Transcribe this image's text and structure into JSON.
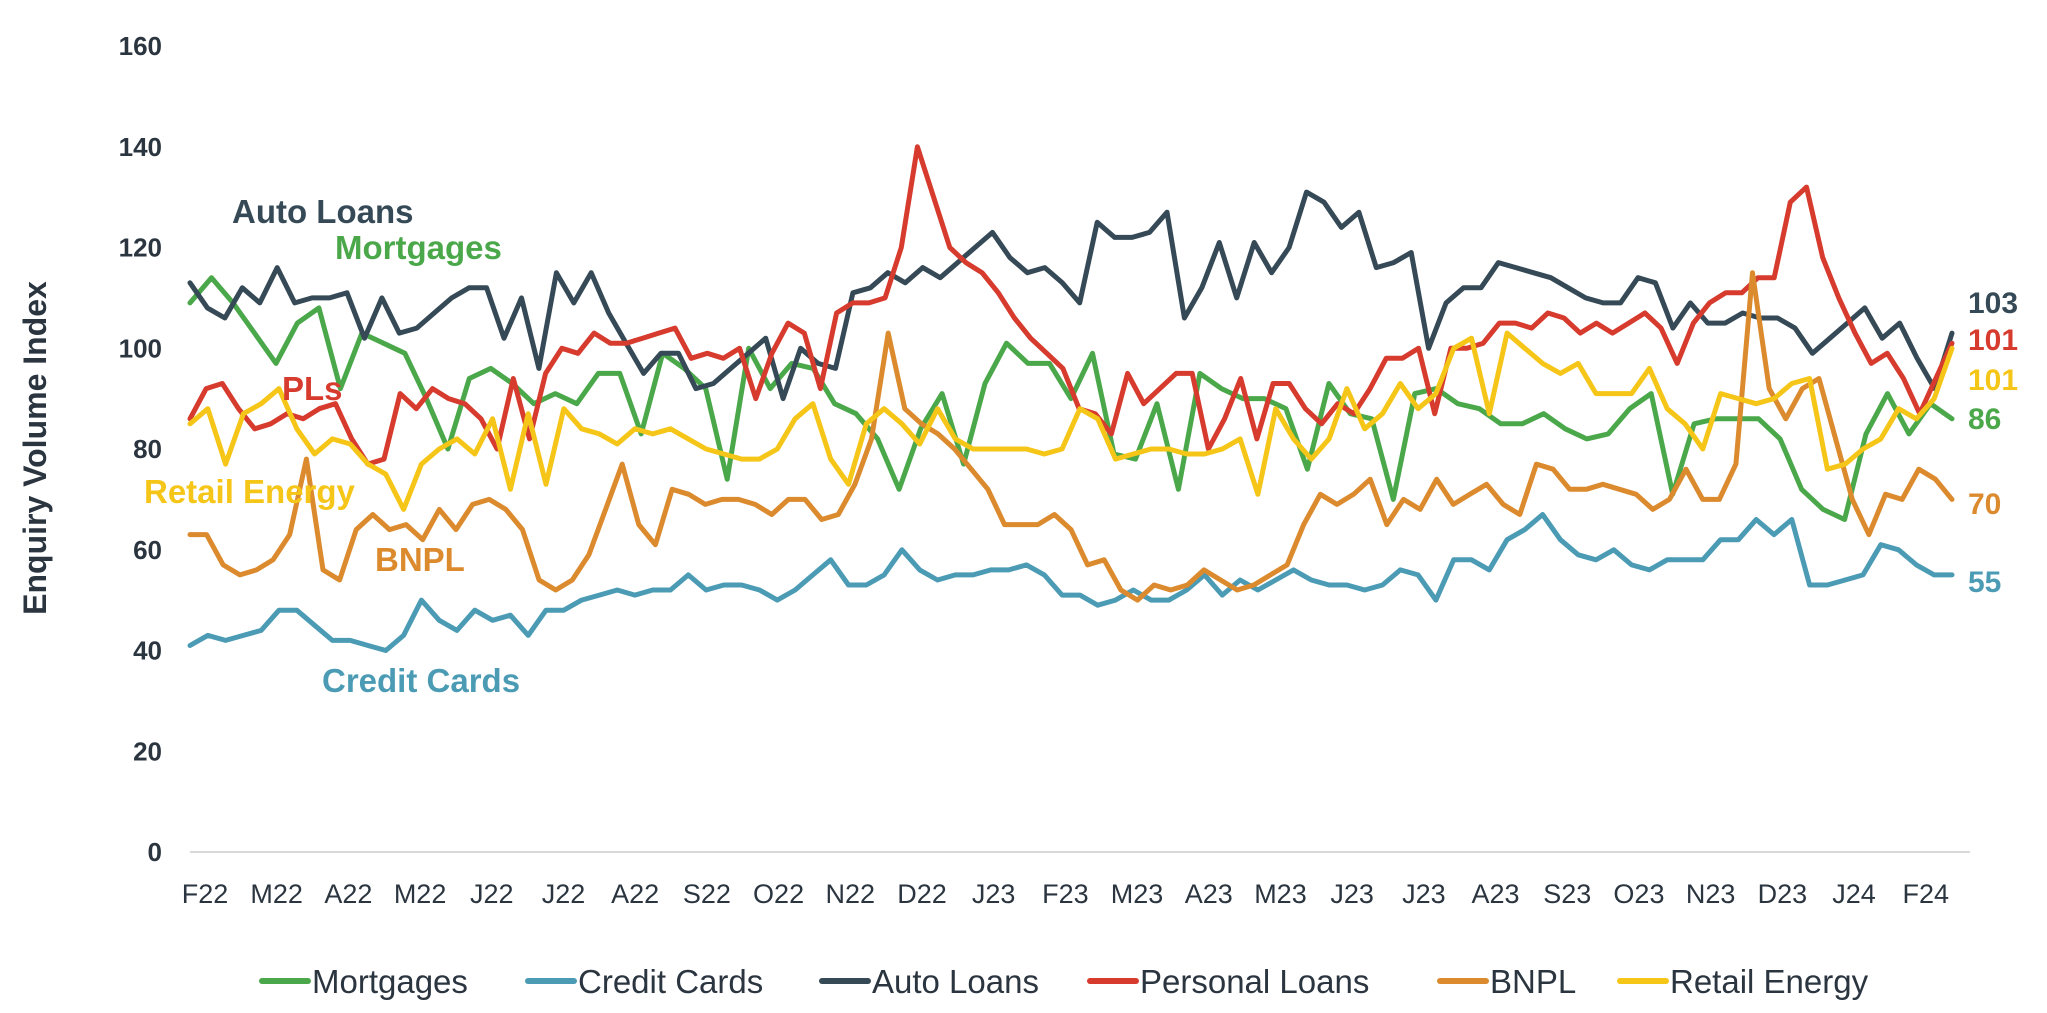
{
  "chart_data": {
    "type": "line",
    "ylabel": "Enquiry Volume Index",
    "ylim": [
      0,
      160
    ],
    "yticks": [
      0,
      20,
      40,
      60,
      80,
      100,
      120,
      140,
      160
    ],
    "xticks": [
      "F22",
      "M22",
      "A22",
      "M22",
      "J22",
      "J22",
      "A22",
      "S22",
      "O22",
      "N22",
      "D22",
      "J23",
      "F23",
      "M23",
      "A23",
      "M23",
      "J23",
      "J23",
      "A23",
      "S23",
      "O23",
      "N23",
      "D23",
      "J24",
      "F24"
    ],
    "series": [
      {
        "name": "Mortgages",
        "color": "#4aa84a",
        "inline_label": "Mortgages",
        "end_label": "86",
        "values": [
          109,
          114,
          109,
          103,
          97,
          105,
          108,
          92,
          103,
          101,
          99,
          90,
          80,
          94,
          96,
          93,
          89,
          91,
          89,
          95,
          95,
          83,
          99,
          96,
          92,
          74,
          100,
          92,
          97,
          96,
          89,
          87,
          82,
          72,
          84,
          91,
          77,
          93,
          101,
          97,
          97,
          90,
          99,
          79,
          78,
          89,
          72,
          95,
          92,
          90,
          90,
          88,
          76,
          93,
          87,
          86,
          70,
          91,
          92,
          89,
          88,
          85,
          85,
          87,
          84,
          82,
          83,
          88,
          91,
          71,
          85,
          86,
          86,
          86,
          82,
          72,
          68,
          66,
          83,
          91,
          83,
          89,
          86
        ]
      },
      {
        "name": "Credit Cards",
        "color": "#4b9bb5",
        "inline_label": "Credit Cards",
        "end_label": "55",
        "values": [
          41,
          43,
          42,
          43,
          44,
          48,
          48,
          45,
          42,
          42,
          41,
          40,
          43,
          50,
          46,
          44,
          48,
          46,
          47,
          43,
          48,
          48,
          50,
          51,
          52,
          51,
          52,
          52,
          55,
          52,
          53,
          53,
          52,
          50,
          52,
          55,
          58,
          53,
          53,
          55,
          60,
          56,
          54,
          55,
          55,
          56,
          56,
          57,
          55,
          51,
          51,
          49,
          50,
          52,
          50,
          50,
          52,
          55,
          51,
          54,
          52,
          54,
          56,
          54,
          53,
          53,
          52,
          53,
          56,
          55,
          50,
          58,
          58,
          56,
          62,
          64,
          67,
          62,
          59,
          58,
          60,
          57,
          56,
          58,
          58,
          58,
          62,
          62,
          66,
          63,
          66,
          53,
          53,
          54,
          55,
          61,
          60,
          57,
          55,
          55
        ]
      },
      {
        "name": "Auto Loans",
        "color": "#354a56",
        "inline_label": "Auto Loans",
        "end_label": "103",
        "values": [
          113,
          108,
          106,
          112,
          109,
          116,
          109,
          110,
          110,
          111,
          102,
          110,
          103,
          104,
          107,
          110,
          112,
          112,
          102,
          110,
          96,
          115,
          109,
          115,
          107,
          101,
          95,
          99,
          99,
          92,
          93,
          96,
          99,
          102,
          90,
          100,
          97,
          96,
          111,
          112,
          115,
          113,
          116,
          114,
          117,
          120,
          123,
          118,
          115,
          116,
          113,
          109,
          125,
          122,
          122,
          123,
          127,
          106,
          112,
          121,
          110,
          121,
          115,
          120,
          131,
          129,
          124,
          127,
          116,
          117,
          119,
          100,
          109,
          112,
          112,
          117,
          116,
          115,
          114,
          112,
          110,
          109,
          109,
          114,
          113,
          104,
          109,
          105,
          105,
          107,
          106,
          106,
          104,
          99,
          102,
          105,
          108,
          102,
          105,
          98,
          92,
          103
        ]
      },
      {
        "name": "Personal Loans",
        "color": "#d63b2e",
        "inline_label": "PLs",
        "end_label": "101",
        "values": [
          86,
          92,
          93,
          88,
          84,
          85,
          87,
          86,
          88,
          89,
          82,
          77,
          78,
          91,
          88,
          92,
          90,
          89,
          86,
          80,
          94,
          82,
          95,
          100,
          99,
          103,
          101,
          101,
          102,
          103,
          104,
          98,
          99,
          98,
          100,
          90,
          99,
          105,
          103,
          92,
          107,
          109,
          109,
          110,
          120,
          140,
          130,
          120,
          117,
          115,
          111,
          106,
          102,
          99,
          96,
          88,
          87,
          83,
          95,
          89,
          92,
          95,
          95,
          80,
          86,
          94,
          82,
          93,
          93,
          88,
          85,
          89,
          87,
          92,
          98,
          98,
          100,
          87,
          100,
          100,
          101,
          105,
          105,
          104,
          107,
          106,
          103,
          105,
          103,
          105,
          107,
          104,
          97,
          105,
          109,
          111,
          111,
          114,
          114,
          129,
          132,
          118,
          110,
          103,
          97,
          99,
          94,
          87,
          94,
          101
        ]
      },
      {
        "name": "BNPL",
        "color": "#dc8a2e",
        "inline_label": "BNPL",
        "end_label": "70",
        "values": [
          63,
          63,
          57,
          55,
          56,
          58,
          63,
          78,
          56,
          54,
          64,
          67,
          64,
          65,
          62,
          68,
          64,
          69,
          70,
          68,
          64,
          54,
          52,
          54,
          59,
          68,
          77,
          65,
          61,
          72,
          71,
          69,
          70,
          70,
          69,
          67,
          70,
          70,
          66,
          67,
          73,
          82,
          103,
          88,
          85,
          83,
          80,
          76,
          72,
          65,
          65,
          65,
          67,
          64,
          57,
          58,
          52,
          50,
          53,
          52,
          53,
          56,
          54,
          52,
          53,
          55,
          57,
          65,
          71,
          69,
          71,
          74,
          65,
          70,
          68,
          74,
          69,
          71,
          73,
          69,
          67,
          77,
          76,
          72,
          72,
          73,
          72,
          71,
          68,
          70,
          76,
          70,
          70,
          77,
          115,
          92,
          86,
          92,
          94,
          82,
          70,
          63,
          71,
          70,
          76,
          74,
          70
        ]
      },
      {
        "name": "Retail Energy",
        "color": "#f5c518",
        "inline_label": "Retail Energy",
        "end_label": "101",
        "values": [
          85,
          88,
          77,
          87,
          89,
          92,
          84,
          79,
          82,
          81,
          77,
          75,
          68,
          77,
          80,
          82,
          79,
          86,
          72,
          87,
          73,
          88,
          84,
          83,
          81,
          84,
          83,
          84,
          82,
          80,
          79,
          78,
          78,
          80,
          86,
          89,
          78,
          73,
          85,
          88,
          85,
          81,
          88,
          82,
          80,
          80,
          80,
          80,
          79,
          80,
          88,
          86,
          78,
          79,
          80,
          80,
          79,
          79,
          80,
          82,
          71,
          88,
          82,
          78,
          82,
          92,
          84,
          87,
          93,
          88,
          91,
          100,
          102,
          87,
          103,
          100,
          97,
          95,
          97,
          91,
          91,
          91,
          96,
          88,
          85,
          80,
          91,
          90,
          89,
          90,
          93,
          94,
          76,
          77,
          80,
          82,
          88,
          86,
          90,
          100
        ]
      }
    ],
    "legend": {
      "position": "bottom",
      "entries": [
        "Mortgages",
        "Credit Cards",
        "Auto Loans",
        "Personal Loans",
        "BNPL",
        "Retail Energy"
      ]
    },
    "grid": false
  }
}
